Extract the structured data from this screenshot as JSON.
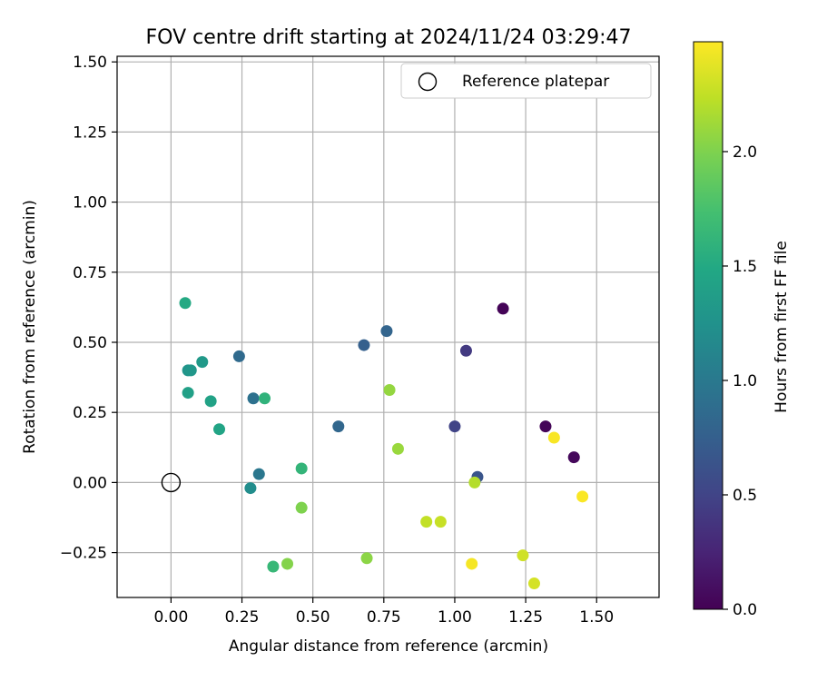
{
  "chart_data": {
    "type": "scatter",
    "title": "FOV centre drift starting at 2024/11/24 03:29:47",
    "xlabel": "Angular distance from reference (arcmin)",
    "ylabel": "Rotation from reference (arcmin)",
    "xlim": [
      -0.19,
      1.72
    ],
    "ylim": [
      -0.41,
      1.52
    ],
    "xticks": [
      0.0,
      0.25,
      0.5,
      0.75,
      1.0,
      1.25,
      1.5
    ],
    "xtick_labels": [
      "0.00",
      "0.25",
      "0.50",
      "0.75",
      "1.00",
      "1.25",
      "1.50"
    ],
    "yticks": [
      -0.25,
      0.0,
      0.25,
      0.5,
      0.75,
      1.0,
      1.25,
      1.5
    ],
    "ytick_labels": [
      "−0.25",
      "0.00",
      "0.25",
      "0.50",
      "0.75",
      "1.00",
      "1.25",
      "1.50"
    ],
    "grid": true,
    "legend": {
      "position": "top-right",
      "label": "Reference platepar"
    },
    "reference_point": {
      "x": 0.0,
      "y": 0.0
    },
    "colorbar": {
      "label": "Hours from first FF file",
      "colormap": "viridis",
      "range": [
        0.0,
        2.48
      ],
      "ticks": [
        0.0,
        0.5,
        1.0,
        1.5,
        2.0
      ],
      "tick_labels": [
        "0.0",
        "0.5",
        "1.0",
        "1.5",
        "2.0"
      ]
    },
    "points": [
      {
        "x": 1.17,
        "y": 0.62,
        "c": 0.02
      },
      {
        "x": 1.32,
        "y": 0.2,
        "c": 0.03
      },
      {
        "x": 1.42,
        "y": 0.09,
        "c": 0.05
      },
      {
        "x": 1.04,
        "y": 0.47,
        "c": 0.42
      },
      {
        "x": 1.0,
        "y": 0.2,
        "c": 0.5
      },
      {
        "x": 1.08,
        "y": 0.02,
        "c": 0.65
      },
      {
        "x": 0.68,
        "y": 0.49,
        "c": 0.75
      },
      {
        "x": 0.76,
        "y": 0.54,
        "c": 0.8
      },
      {
        "x": 0.59,
        "y": 0.2,
        "c": 0.82
      },
      {
        "x": 0.24,
        "y": 0.45,
        "c": 0.85
      },
      {
        "x": 0.29,
        "y": 0.3,
        "c": 0.92
      },
      {
        "x": 0.31,
        "y": 0.03,
        "c": 0.98
      },
      {
        "x": 0.28,
        "y": -0.02,
        "c": 1.2
      },
      {
        "x": 0.06,
        "y": 0.4,
        "c": 1.28
      },
      {
        "x": 0.07,
        "y": 0.4,
        "c": 1.3
      },
      {
        "x": 0.11,
        "y": 0.43,
        "c": 1.33
      },
      {
        "x": 0.06,
        "y": 0.32,
        "c": 1.4
      },
      {
        "x": 0.14,
        "y": 0.29,
        "c": 1.42
      },
      {
        "x": 0.17,
        "y": 0.19,
        "c": 1.45
      },
      {
        "x": 0.05,
        "y": 0.64,
        "c": 1.5
      },
      {
        "x": 0.33,
        "y": 0.3,
        "c": 1.6
      },
      {
        "x": 0.46,
        "y": 0.05,
        "c": 1.62
      },
      {
        "x": 0.36,
        "y": -0.3,
        "c": 1.65
      },
      {
        "x": 0.46,
        "y": -0.09,
        "c": 2.0
      },
      {
        "x": 0.41,
        "y": -0.29,
        "c": 2.02
      },
      {
        "x": 0.69,
        "y": -0.27,
        "c": 2.05
      },
      {
        "x": 0.77,
        "y": 0.33,
        "c": 2.08
      },
      {
        "x": 0.8,
        "y": 0.12,
        "c": 2.1
      },
      {
        "x": 1.07,
        "y": 0.0,
        "c": 2.2
      },
      {
        "x": 0.9,
        "y": -0.14,
        "c": 2.25
      },
      {
        "x": 0.95,
        "y": -0.14,
        "c": 2.27
      },
      {
        "x": 1.24,
        "y": -0.26,
        "c": 2.3
      },
      {
        "x": 1.28,
        "y": -0.36,
        "c": 2.32
      },
      {
        "x": 1.06,
        "y": -0.29,
        "c": 2.45
      },
      {
        "x": 1.35,
        "y": 0.16,
        "c": 2.46
      },
      {
        "x": 1.45,
        "y": -0.05,
        "c": 2.47
      }
    ]
  }
}
